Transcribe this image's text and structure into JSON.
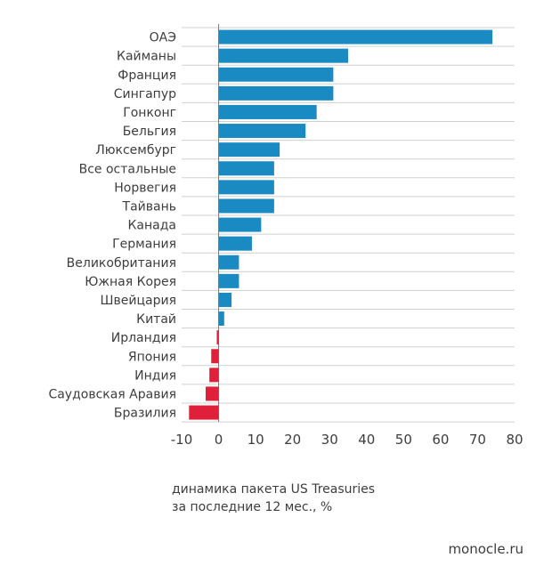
{
  "chart_data": {
    "type": "bar",
    "orientation": "horizontal",
    "categories": [
      "ОАЭ",
      "Кайманы",
      "Франция",
      "Сингапур",
      "Гонконг",
      "Бельгия",
      "Люксембург",
      "Все остальные",
      "Норвегия",
      "Тайвань",
      "Канада",
      "Германия",
      "Великобритания",
      "Южная Корея",
      "Швейцария",
      "Китай",
      "Ирландия",
      "Япония",
      "Индия",
      "Саудовская Аравия",
      "Бразилия"
    ],
    "values": [
      74,
      35,
      31,
      31,
      26.5,
      23.5,
      16.5,
      15,
      15,
      15,
      11.5,
      9,
      5.5,
      5.5,
      3.5,
      1.5,
      -0.5,
      -2,
      -2.5,
      -3.5,
      -8
    ],
    "xlim": [
      -10,
      80
    ],
    "xticks": [
      "-10",
      "0",
      "10",
      "20",
      "30",
      "40",
      "50",
      "60",
      "70",
      "80"
    ],
    "colors": {
      "positive": "#1a8ac2",
      "negative": "#e0203a"
    },
    "xlabel": "динамика пакета US Treasuries\nза последние 12 мес., %",
    "xlabel_lines": [
      "динамика пакета US Treasuries",
      "за последние 12 мес., %"
    ]
  },
  "source": "monocle.ru"
}
